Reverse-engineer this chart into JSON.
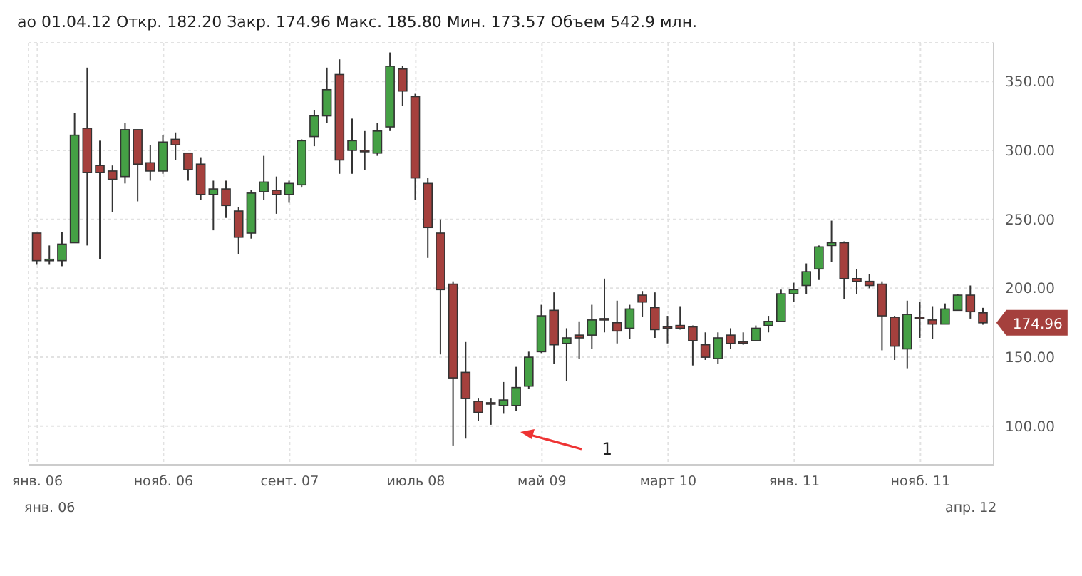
{
  "chart_data": {
    "type": "candlestick",
    "title": "ао 01.04.12 Откр. 182.20 Закр. 174.96 Макс. 185.80 Мин. 173.57 Объем 542.9 млн.",
    "x": [
      "2006-01",
      "2006-02",
      "2006-03",
      "2006-04",
      "2006-05",
      "2006-06",
      "2006-07",
      "2006-08",
      "2006-09",
      "2006-10",
      "2006-11",
      "2006-12",
      "2007-01",
      "2007-02",
      "2007-03",
      "2007-04",
      "2007-05",
      "2007-06",
      "2007-07",
      "2007-08",
      "2007-09",
      "2007-10",
      "2007-11",
      "2007-12",
      "2008-01",
      "2008-02",
      "2008-03",
      "2008-04",
      "2008-05",
      "2008-06",
      "2008-07",
      "2008-08",
      "2008-09",
      "2008-10",
      "2008-11",
      "2008-12",
      "2009-01",
      "2009-02",
      "2009-03",
      "2009-04",
      "2009-05",
      "2009-06",
      "2009-07",
      "2009-08",
      "2009-09",
      "2009-10",
      "2009-11",
      "2009-12",
      "2010-01",
      "2010-02",
      "2010-03",
      "2010-04",
      "2010-05",
      "2010-06",
      "2010-07",
      "2010-08",
      "2010-09",
      "2010-10",
      "2010-11",
      "2010-12",
      "2011-01",
      "2011-02",
      "2011-03",
      "2011-04",
      "2011-05",
      "2011-06",
      "2011-07",
      "2011-08",
      "2011-09",
      "2011-10",
      "2011-11",
      "2011-12",
      "2012-01",
      "2012-02",
      "2012-03",
      "2012-04"
    ],
    "ohlc": [
      [
        240,
        240,
        217,
        220
      ],
      [
        220,
        231,
        217,
        221
      ],
      [
        220,
        241,
        216,
        232
      ],
      [
        233,
        327,
        233,
        311
      ],
      [
        316,
        360,
        231,
        284
      ],
      [
        289,
        307,
        221,
        284
      ],
      [
        285,
        289,
        255,
        279
      ],
      [
        281,
        320,
        276,
        315
      ],
      [
        315,
        315,
        263,
        290
      ],
      [
        291,
        304,
        278,
        285
      ],
      [
        285,
        311,
        283,
        306
      ],
      [
        308,
        313,
        293,
        304
      ],
      [
        298,
        298,
        278,
        286
      ],
      [
        290,
        295,
        264,
        268
      ],
      [
        268,
        278,
        242,
        272
      ],
      [
        272,
        278,
        251,
        260
      ],
      [
        256,
        259,
        225,
        237
      ],
      [
        240,
        271,
        236,
        269
      ],
      [
        270,
        296,
        264,
        277
      ],
      [
        271,
        281,
        254,
        268
      ],
      [
        268,
        278,
        262,
        276
      ],
      [
        275,
        308,
        273,
        307
      ],
      [
        310,
        329,
        303,
        325
      ],
      [
        325,
        360,
        320,
        344
      ],
      [
        355,
        366,
        283,
        293
      ],
      [
        300,
        323,
        283,
        307
      ],
      [
        300,
        314,
        286,
        299
      ],
      [
        298,
        320,
        296,
        314
      ],
      [
        317,
        371,
        314,
        361
      ],
      [
        359,
        361,
        332,
        343
      ],
      [
        339,
        341,
        264,
        280
      ],
      [
        276,
        280,
        222,
        244
      ],
      [
        240,
        250,
        152,
        199
      ],
      [
        203,
        205,
        86,
        135
      ],
      [
        139,
        161,
        91,
        120
      ],
      [
        118,
        120,
        104,
        110
      ],
      [
        117,
        120,
        101,
        116
      ],
      [
        115,
        132,
        109,
        119
      ],
      [
        115,
        143,
        111,
        128
      ],
      [
        129,
        154,
        127,
        150
      ],
      [
        154,
        188,
        153,
        180
      ],
      [
        184,
        197,
        145,
        159
      ],
      [
        160,
        171,
        133,
        164
      ],
      [
        166,
        176,
        149,
        164
      ],
      [
        166,
        188,
        156,
        177
      ],
      [
        178,
        207,
        168,
        177
      ],
      [
        175,
        191,
        160,
        169
      ],
      [
        171,
        188,
        163,
        185
      ],
      [
        195,
        198,
        179,
        190
      ],
      [
        186,
        197,
        164,
        170
      ],
      [
        172,
        180,
        160,
        171
      ],
      [
        173,
        187,
        170,
        171
      ],
      [
        172,
        173,
        144,
        162
      ],
      [
        159,
        168,
        148,
        150
      ],
      [
        149,
        168,
        145,
        164
      ],
      [
        166,
        171,
        156,
        160
      ],
      [
        161,
        168,
        159,
        160
      ],
      [
        162,
        173,
        162,
        171
      ],
      [
        173,
        180,
        168,
        176
      ],
      [
        176,
        199,
        176,
        196
      ],
      [
        196,
        204,
        190,
        199
      ],
      [
        202,
        218,
        196,
        212
      ],
      [
        214,
        231,
        206,
        230
      ],
      [
        231,
        249,
        219,
        233
      ],
      [
        233,
        234,
        192,
        207
      ],
      [
        207,
        214,
        196,
        205
      ],
      [
        205,
        210,
        200,
        202
      ],
      [
        203,
        205,
        155,
        180
      ],
      [
        179,
        180,
        148,
        158
      ],
      [
        156,
        191,
        142,
        181
      ],
      [
        179,
        190,
        164,
        178
      ],
      [
        177,
        187,
        163,
        174
      ],
      [
        174,
        189,
        174,
        185
      ],
      [
        184,
        196,
        184,
        195
      ],
      [
        195,
        202,
        178,
        183
      ],
      [
        182.2,
        185.8,
        173.57,
        174.96
      ]
    ],
    "colors": [
      "#a5403d",
      "#45a045",
      "#45a045",
      "#45a045",
      "#a5403d",
      "#a5403d",
      "#a5403d",
      "#45a045",
      "#a5403d",
      "#a5403d",
      "#45a045",
      "#a5403d",
      "#a5403d",
      "#a5403d",
      "#45a045",
      "#a5403d",
      "#a5403d",
      "#45a045",
      "#45a045",
      "#a5403d",
      "#45a045",
      "#45a045",
      "#45a045",
      "#45a045",
      "#a5403d",
      "#45a045",
      "#a5403d",
      "#45a045",
      "#45a045",
      "#a5403d",
      "#a5403d",
      "#a5403d",
      "#a5403d",
      "#a5403d",
      "#a5403d",
      "#a5403d",
      "#a5403d",
      "#45a045",
      "#45a045",
      "#45a045",
      "#45a045",
      "#a5403d",
      "#45a045",
      "#a5403d",
      "#45a045",
      "#a5403d",
      "#a5403d",
      "#45a045",
      "#a5403d",
      "#a5403d",
      "#a5403d",
      "#a5403d",
      "#a5403d",
      "#a5403d",
      "#45a045",
      "#a5403d",
      "#a5403d",
      "#45a045",
      "#45a045",
      "#45a045",
      "#45a045",
      "#45a045",
      "#45a045",
      "#45a045",
      "#a5403d",
      "#a5403d",
      "#a5403d",
      "#a5403d",
      "#a5403d",
      "#45a045",
      "#a5403d",
      "#a5403d",
      "#45a045",
      "#45a045",
      "#a5403d",
      "#a5403d"
    ],
    "xlim": [
      "2005-12-10",
      "2012-04-25"
    ],
    "xticks": [
      {
        "value": "2006-01",
        "label": "янв. 06"
      },
      {
        "value": "2006-11",
        "label": "нояб. 06"
      },
      {
        "value": "2007-09",
        "label": "сент. 07"
      },
      {
        "value": "2008-07",
        "label": "июль 08"
      },
      {
        "value": "2009-05",
        "label": "май 09"
      },
      {
        "value": "2010-03",
        "label": "март 10"
      },
      {
        "value": "2011-01",
        "label": "янв. 11"
      },
      {
        "value": "2011-11",
        "label": "нояб. 11"
      }
    ],
    "ylim": [
      72,
      378
    ],
    "yticks": [
      {
        "value": 100,
        "label": "100.00"
      },
      {
        "value": 150,
        "label": "150.00"
      },
      {
        "value": 200,
        "label": "200.00"
      },
      {
        "value": 250,
        "label": "250.00"
      },
      {
        "value": 300,
        "label": "300.00"
      },
      {
        "value": 350,
        "label": "350.00"
      }
    ],
    "grid": true,
    "annotations": [
      {
        "text": "174.96",
        "x": "2012-04",
        "y": 174.96
      },
      "1",
      "янв. 06",
      "апр. 12"
    ]
  }
}
